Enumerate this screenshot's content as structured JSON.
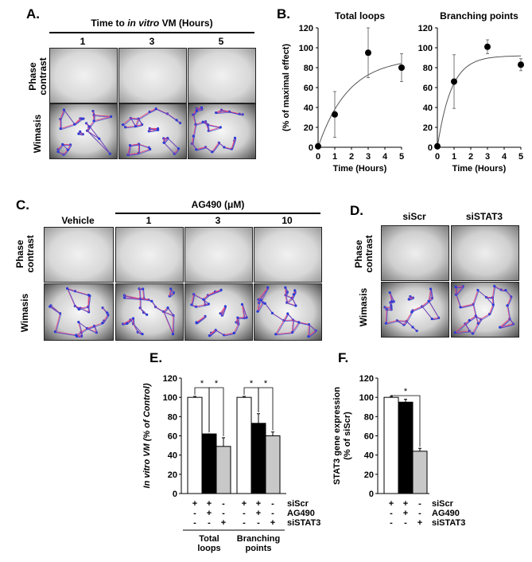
{
  "panelA": {
    "label": "A.",
    "header_pre": "Time to ",
    "header_italic": "in vitro",
    "header_post": " VM (Hours)",
    "columns": [
      "1",
      "3",
      "5"
    ],
    "rows": [
      "Phase\ncontrast",
      "Wimasis"
    ]
  },
  "panelB": {
    "label": "B.",
    "chart_data": [
      {
        "type": "scatter",
        "title": "Total loops",
        "xlabel": "Time (Hours)",
        "ylabel": "(% of maximal effect)",
        "x": [
          0,
          1,
          3,
          5
        ],
        "y": [
          1,
          33,
          95,
          80
        ],
        "err": [
          0,
          23,
          25,
          14
        ],
        "xticks": [
          0,
          1,
          2,
          3,
          4,
          5
        ],
        "yticks": [
          0,
          20,
          40,
          60,
          80,
          100,
          120
        ],
        "xlim": [
          0,
          5
        ],
        "ylim": [
          0,
          120
        ],
        "fit_plateau": 90,
        "fit_k": 0.55
      },
      {
        "type": "scatter",
        "title": "Branching points",
        "xlabel": "Time (Hours)",
        "x": [
          0,
          1,
          3,
          5
        ],
        "y": [
          1,
          66,
          101,
          83
        ],
        "err": [
          0,
          27,
          7,
          6
        ],
        "xticks": [
          0,
          1,
          2,
          3,
          4,
          5
        ],
        "yticks": [
          0,
          20,
          40,
          60,
          80,
          100,
          120
        ],
        "xlim": [
          0,
          5
        ],
        "ylim": [
          0,
          120
        ],
        "fit_plateau": 92,
        "fit_k": 1.2
      }
    ]
  },
  "panelC": {
    "label": "C.",
    "header": "AG490 (μM)",
    "columns": [
      "Vehicle",
      "1",
      "3",
      "10"
    ],
    "rows": [
      "Phase\ncontrast",
      "Wimasis"
    ]
  },
  "panelD": {
    "label": "D.",
    "columns": [
      "siScr",
      "siSTAT3"
    ],
    "rows": [
      "Phase\ncontrast",
      "Wimasis"
    ]
  },
  "panelE": {
    "label": "E.",
    "chart_data": {
      "type": "bar",
      "ylabel": "In vitro VM (% of Control)",
      "groups": [
        "Total\nloops",
        "Branching\npoints"
      ],
      "conditions": [
        "siScr",
        "AG490",
        "siSTAT3"
      ],
      "values": [
        [
          100,
          62,
          49
        ],
        [
          100,
          73,
          60
        ]
      ],
      "err": [
        [
          1,
          0,
          9
        ],
        [
          1,
          10,
          4
        ]
      ],
      "bar_colors": [
        "#ffffff",
        "#000000",
        "#c8c8c8"
      ],
      "signs": [
        [
          "+",
          "+",
          "-"
        ],
        [
          "-",
          "+",
          "-"
        ],
        [
          "-",
          "-",
          "+"
        ]
      ],
      "yticks": [
        0,
        20,
        40,
        60,
        80,
        100,
        120
      ],
      "ylim": [
        0,
        120
      ],
      "significance": "*"
    }
  },
  "panelF": {
    "label": "F.",
    "chart_data": {
      "type": "bar",
      "ylabel": "STAT3 gene expression\n(% of siScr)",
      "conditions": [
        "siScr",
        "AG490",
        "siSTAT3"
      ],
      "values": [
        100,
        95,
        44
      ],
      "err": [
        1,
        3,
        3
      ],
      "bar_colors": [
        "#ffffff",
        "#000000",
        "#c8c8c8"
      ],
      "signs": [
        [
          "+",
          "+",
          "-"
        ],
        [
          "-",
          "+",
          "-"
        ],
        [
          "-",
          "-",
          "+"
        ]
      ],
      "yticks": [
        0,
        20,
        40,
        60,
        80,
        100,
        120
      ],
      "ylim": [
        0,
        120
      ],
      "significance": "*"
    }
  }
}
